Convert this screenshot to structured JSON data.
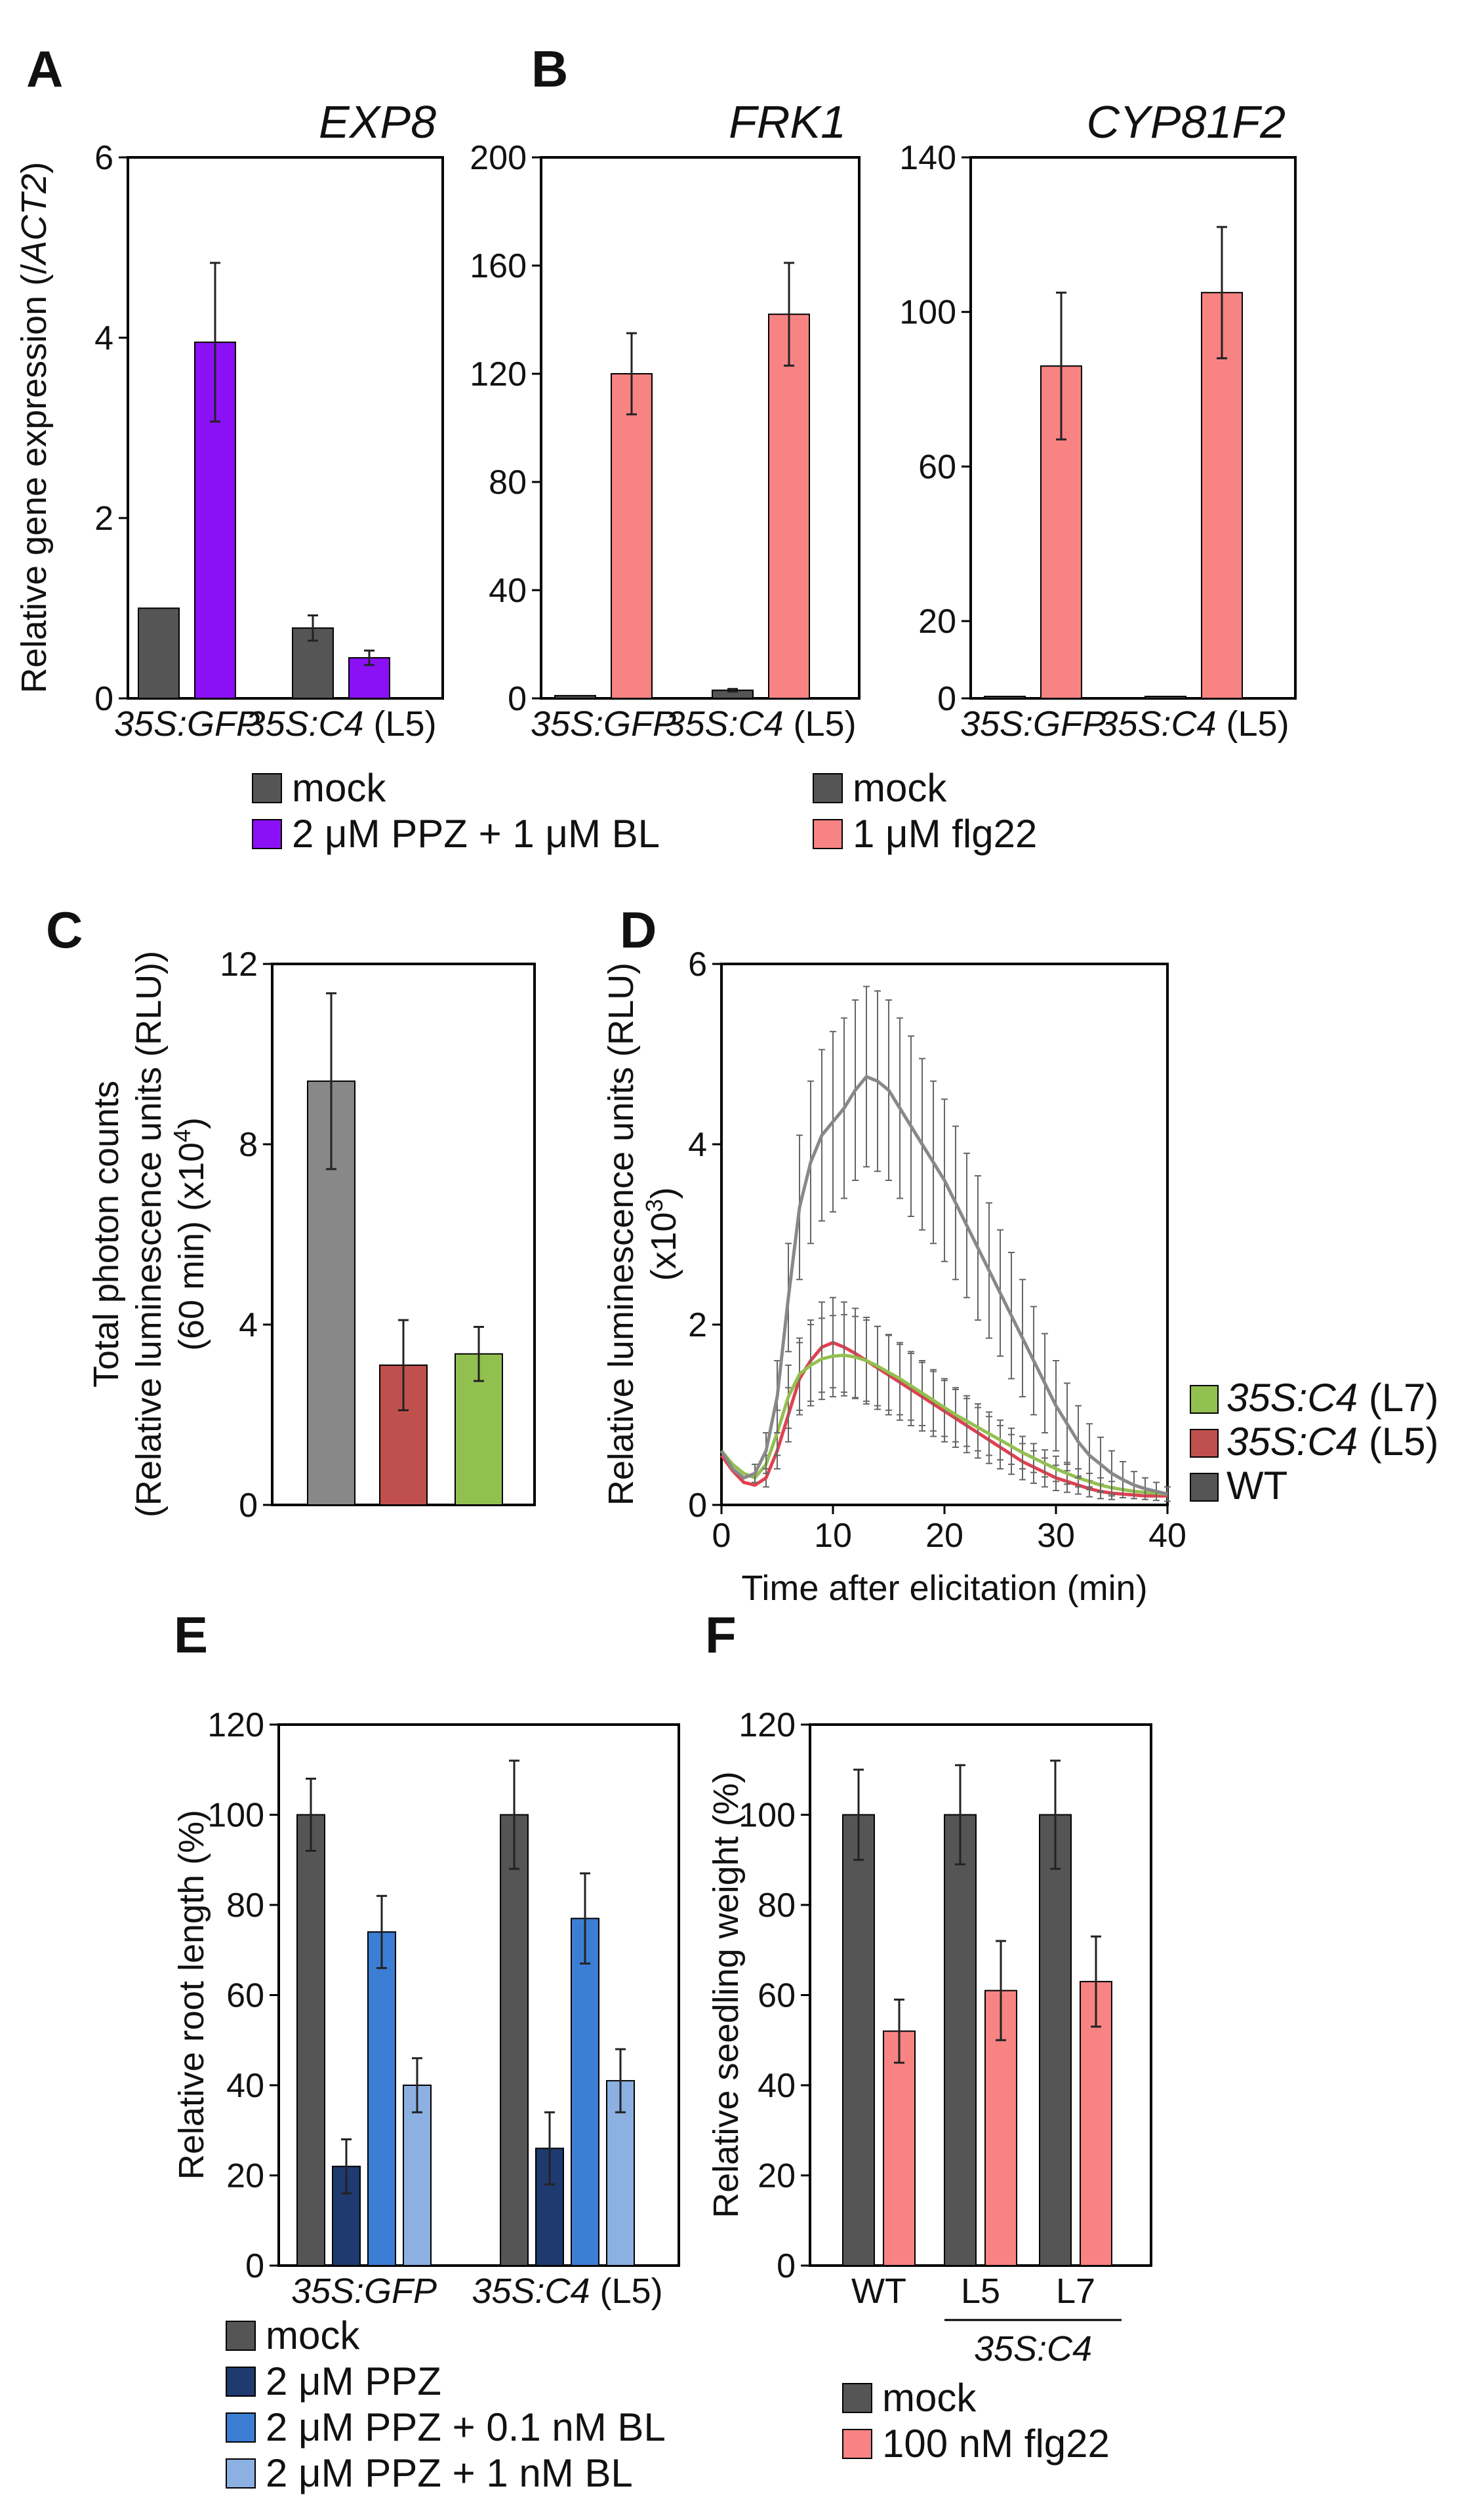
{
  "panels": {
    "A": "A",
    "B": "B",
    "C": "C",
    "D": "D",
    "E": "E",
    "F": "F"
  },
  "colors": {
    "mock": "#555555",
    "ppz_bl": "#8c10f5",
    "flg22": "#f88383",
    "wt_gray": "#888888",
    "l5_red": "#c0504d",
    "l7_green": "#92c050",
    "ppz": "#1f3a6e",
    "ppz01": "#3d7ed5",
    "ppz1": "#8cb0e2",
    "err": "#222222"
  },
  "legends": {
    "A": {
      "mock": "mock",
      "treat": "2 μM PPZ + 1 μM BL"
    },
    "B": {
      "mock": "mock",
      "treat": "1 μM flg22"
    },
    "D": {
      "l7_name": "35S:C4",
      "l7_tag": "(L7)",
      "l5_name": "35S:C4",
      "l5_tag": "(L5)",
      "wt": "WT"
    },
    "E": {
      "mock": "mock",
      "ppz": "2 μM PPZ",
      "ppz01": "2 μM PPZ + 0.1 nM BL",
      "ppz1": "2 μM PPZ + 1 nM BL"
    },
    "F": {
      "mock": "mock",
      "treat": "100 nM flg22"
    }
  },
  "labels": {
    "A_cat1": "35S:GFP",
    "A_cat2": "35S:C4",
    "A_cat2_tag": "(L5)",
    "B1_cat1": "35S:GFP",
    "B1_cat2": "35S:C4",
    "B1_cat2_tag": "(L5)",
    "B2_cat1": "35S:GFP",
    "B2_cat2": "35S:C4",
    "B2_cat2_tag": "(L5)",
    "E_cat1": "35S:GFP",
    "E_cat2": "35S:C4",
    "E_cat2_tag": "(L5)",
    "F_wt": "WT",
    "F_l5": "L5",
    "F_l7": "L7",
    "F_group": "35S:C4",
    "A_ylabel_pre": "Relative gene expression (/",
    "A_ylabel_it": "ACT2",
    "A_ylabel_post": ")",
    "C_ylabel1": "Total photon counts",
    "C_ylabel2": "(Relative luminescence units (RLU))",
    "C_ylabel3_pre": "(60 min) (x10",
    "C_ylabel3_sup": "4",
    "C_ylabel3_post": ")",
    "D_ylabel1": "Relative luminescence units (RLU)",
    "D_ylabel2_pre": "(x10",
    "D_ylabel2_sup": "3",
    "D_ylabel2_post": ")",
    "D_xlabel": "Time after elicitation (min)",
    "E_ylabel": "Relative root length (%)",
    "F_ylabel": "Relative seedling weight (%)"
  },
  "chart_data": [
    {
      "id": "A",
      "type": "bar",
      "title": "EXP8",
      "ylabel": "Relative gene expression (/ACT2)",
      "ylim": [
        0,
        6
      ],
      "yticks": [
        0,
        2,
        4,
        6
      ],
      "categories": [
        "35S:GFP",
        "35S:C4 (L5)"
      ],
      "series": [
        {
          "name": "mock",
          "color": "#555555",
          "values": [
            1.0,
            0.78
          ],
          "errors": [
            0.0,
            0.14
          ]
        },
        {
          "name": "2 μM PPZ + 1 μM BL",
          "color": "#8c10f5",
          "values": [
            3.95,
            0.45
          ],
          "errors": [
            0.88,
            0.08
          ]
        }
      ]
    },
    {
      "id": "B1",
      "type": "bar",
      "title": "FRK1",
      "ylabel": "",
      "ylim": [
        0,
        200
      ],
      "yticks": [
        0,
        40,
        80,
        120,
        160,
        200
      ],
      "categories": [
        "35S:GFP",
        "35S:C4 (L5)"
      ],
      "series": [
        {
          "name": "mock",
          "color": "#555555",
          "values": [
            1,
            3
          ],
          "errors": [
            0,
            0.5
          ]
        },
        {
          "name": "1 μM flg22",
          "color": "#f88383",
          "values": [
            120,
            142
          ],
          "errors": [
            15,
            19
          ]
        }
      ]
    },
    {
      "id": "B2",
      "type": "bar",
      "title": "CYP81F2",
      "ylabel": "",
      "ylim": [
        0,
        140
      ],
      "yticks": [
        0,
        20,
        60,
        100,
        140
      ],
      "categories": [
        "35S:GFP",
        "35S:C4 (L5)"
      ],
      "series": [
        {
          "name": "mock",
          "color": "#555555",
          "values": [
            0.5,
            0.5
          ],
          "errors": [
            0,
            0
          ]
        },
        {
          "name": "1 μM flg22",
          "color": "#f88383",
          "values": [
            86,
            105
          ],
          "errors": [
            19,
            17
          ]
        }
      ]
    },
    {
      "id": "C",
      "type": "bar",
      "title": "",
      "ylabel": "Total photon counts (Relative luminescence units (RLU)) (60 min) (x10^4)",
      "ylim": [
        0,
        12
      ],
      "yticks": [
        0,
        4,
        8,
        12
      ],
      "categories": [
        "WT",
        "35S:C4 (L5)",
        "35S:C4 (L7)"
      ],
      "values": [
        9.4,
        3.1,
        3.35
      ],
      "errors": [
        1.95,
        1.0,
        0.6
      ],
      "colors": [
        "#888888",
        "#c0504d",
        "#92c050"
      ]
    },
    {
      "id": "D",
      "type": "line",
      "title": "",
      "xlabel": "Time after elicitation (min)",
      "ylabel": "Relative luminescence units (RLU) (x10^3)",
      "xlim": [
        0,
        40
      ],
      "ylim": [
        0,
        6
      ],
      "xticks": [
        0,
        10,
        20,
        30,
        40
      ],
      "yticks": [
        0,
        2,
        4,
        6
      ],
      "x": [
        0,
        1,
        2,
        3,
        4,
        5,
        6,
        7,
        8,
        9,
        10,
        11,
        12,
        13,
        14,
        15,
        16,
        17,
        18,
        19,
        20,
        21,
        22,
        23,
        24,
        25,
        26,
        27,
        28,
        29,
        30,
        31,
        32,
        33,
        34,
        35,
        36,
        37,
        38,
        39,
        40
      ],
      "series": [
        {
          "name": "WT",
          "color": "#888888",
          "values": [
            0.6,
            0.4,
            0.3,
            0.35,
            0.6,
            1.2,
            2.3,
            3.3,
            3.8,
            4.1,
            4.25,
            4.4,
            4.6,
            4.75,
            4.7,
            4.6,
            4.4,
            4.2,
            4.0,
            3.8,
            3.6,
            3.35,
            3.1,
            2.85,
            2.6,
            2.35,
            2.1,
            1.85,
            1.6,
            1.35,
            1.1,
            0.9,
            0.7,
            0.55,
            0.45,
            0.35,
            0.28,
            0.22,
            0.18,
            0.15,
            0.12
          ],
          "errors": [
            0.05,
            0.05,
            0.05,
            0.1,
            0.2,
            0.4,
            0.6,
            0.8,
            0.9,
            0.95,
            1.0,
            1.0,
            1.0,
            1.0,
            1.0,
            1.0,
            1.0,
            1.0,
            0.95,
            0.9,
            0.9,
            0.85,
            0.8,
            0.8,
            0.75,
            0.7,
            0.7,
            0.65,
            0.6,
            0.55,
            0.5,
            0.45,
            0.4,
            0.35,
            0.3,
            0.25,
            0.2,
            0.15,
            0.12,
            0.1,
            0.08
          ]
        },
        {
          "name": "35S:C4 (L5)",
          "color": "#e04050",
          "values": [
            0.55,
            0.38,
            0.25,
            0.22,
            0.3,
            0.6,
            1.0,
            1.4,
            1.6,
            1.75,
            1.8,
            1.75,
            1.68,
            1.6,
            1.52,
            1.44,
            1.36,
            1.28,
            1.2,
            1.12,
            1.04,
            0.96,
            0.88,
            0.8,
            0.72,
            0.64,
            0.56,
            0.48,
            0.42,
            0.36,
            0.3,
            0.26,
            0.22,
            0.18,
            0.15,
            0.13,
            0.12,
            0.11,
            0.1,
            0.1,
            0.1
          ],
          "errors": [
            0.05,
            0.05,
            0.05,
            0.05,
            0.1,
            0.2,
            0.3,
            0.4,
            0.45,
            0.5,
            0.5,
            0.5,
            0.5,
            0.48,
            0.46,
            0.44,
            0.42,
            0.4,
            0.38,
            0.36,
            0.34,
            0.32,
            0.3,
            0.28,
            0.26,
            0.24,
            0.22,
            0.2,
            0.18,
            0.16,
            0.14,
            0.12,
            0.1,
            0.09,
            0.08,
            0.07,
            0.06,
            0.05,
            0.05,
            0.05,
            0.05
          ]
        },
        {
          "name": "35S:C4 (L7)",
          "color": "#92c050",
          "values": [
            0.6,
            0.45,
            0.35,
            0.3,
            0.45,
            0.8,
            1.2,
            1.45,
            1.55,
            1.62,
            1.65,
            1.66,
            1.64,
            1.6,
            1.54,
            1.47,
            1.4,
            1.32,
            1.24,
            1.16,
            1.08,
            1.0,
            0.93,
            0.86,
            0.79,
            0.72,
            0.65,
            0.58,
            0.52,
            0.46,
            0.4,
            0.35,
            0.3,
            0.26,
            0.22,
            0.19,
            0.17,
            0.15,
            0.14,
            0.13,
            0.12
          ],
          "errors": [
            0.05,
            0.05,
            0.05,
            0.05,
            0.1,
            0.25,
            0.35,
            0.4,
            0.45,
            0.45,
            0.45,
            0.45,
            0.45,
            0.45,
            0.44,
            0.42,
            0.4,
            0.38,
            0.36,
            0.34,
            0.32,
            0.3,
            0.28,
            0.26,
            0.24,
            0.22,
            0.2,
            0.18,
            0.16,
            0.15,
            0.14,
            0.12,
            0.1,
            0.09,
            0.08,
            0.07,
            0.06,
            0.05,
            0.05,
            0.05,
            0.05
          ]
        }
      ]
    },
    {
      "id": "E",
      "type": "bar",
      "title": "",
      "ylabel": "Relative root length (%)",
      "ylim": [
        0,
        120
      ],
      "yticks": [
        0,
        20,
        40,
        60,
        80,
        100,
        120
      ],
      "categories": [
        "35S:GFP",
        "35S:C4 (L5)"
      ],
      "series": [
        {
          "name": "mock",
          "color": "#555555",
          "values": [
            100,
            100
          ],
          "errors": [
            8,
            12
          ]
        },
        {
          "name": "2 μM PPZ",
          "color": "#1f3a6e",
          "values": [
            22,
            26
          ],
          "errors": [
            6,
            8
          ]
        },
        {
          "name": "2 μM PPZ + 0.1 nM BL",
          "color": "#3d7ed5",
          "values": [
            74,
            77
          ],
          "errors": [
            8,
            10
          ]
        },
        {
          "name": "2 μM PPZ + 1 nM BL",
          "color": "#8cb0e2",
          "values": [
            40,
            41
          ],
          "errors": [
            6,
            7
          ]
        }
      ]
    },
    {
      "id": "F",
      "type": "bar",
      "title": "",
      "ylabel": "Relative seedling weight (%)",
      "ylim": [
        0,
        120
      ],
      "yticks": [
        0,
        20,
        40,
        60,
        80,
        100,
        120
      ],
      "categories": [
        "WT",
        "L5",
        "L7"
      ],
      "group_label": "35S:C4",
      "series": [
        {
          "name": "mock",
          "color": "#555555",
          "values": [
            100,
            100,
            100
          ],
          "errors": [
            10,
            11,
            12
          ]
        },
        {
          "name": "100 nM flg22",
          "color": "#f88383",
          "values": [
            52,
            61,
            63
          ],
          "errors": [
            7,
            11,
            10
          ]
        }
      ]
    }
  ]
}
